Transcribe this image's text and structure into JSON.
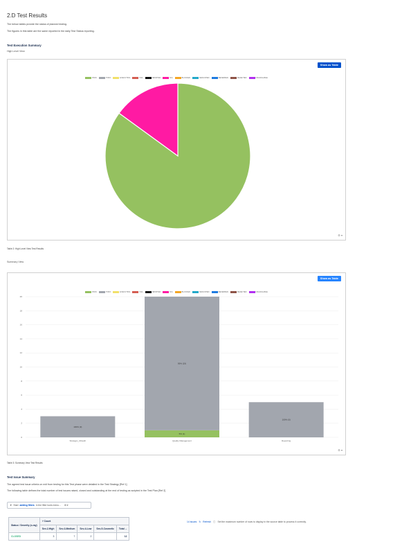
{
  "page": {
    "title": "2.D Test Results",
    "intro_1": "The below tables provide the status of planned testing.",
    "intro_2": "The figures in this table are the same reported in the daily Test Status reporting."
  },
  "exec_summary": {
    "heading": "Test Execution Summary",
    "subheading": "High Level View",
    "button": "Show as Table",
    "caption": "Table 2: High Level View Test Results",
    "gear": "⚙ ▾"
  },
  "summary_view": {
    "subheading": "Summary View",
    "button": "Show as Table",
    "caption": "Table 3: Summary View Test Results",
    "gear": "⚙ ▾"
  },
  "legend": [
    {
      "label": "PASS",
      "color": "#95c160"
    },
    {
      "label": "TODO",
      "color": "#a2a6ae"
    },
    {
      "label": "EXECUTING",
      "color": "#f1e069"
    },
    {
      "label": "FAIL",
      "color": "#d45d52"
    },
    {
      "label": "ABORTED",
      "color": "#111111"
    },
    {
      "label": "N/A",
      "color": "#ff1aa3"
    },
    {
      "label": "BLOCKED",
      "color": "#f5a623"
    },
    {
      "label": "DESCOPED",
      "color": "#23a9c9"
    },
    {
      "label": "DEFERRED",
      "color": "#1e7be0"
    },
    {
      "label": "REJECTED",
      "color": "#8e5347"
    },
    {
      "label": "UNAVAILABLE",
      "color": "#b22ff0"
    }
  ],
  "chart_data": [
    {
      "type": "pie",
      "labels": [
        "PASS",
        "N/A"
      ],
      "values": [
        85,
        15
      ],
      "colors": [
        "#95c160",
        "#ff1aa3"
      ]
    },
    {
      "type": "bar",
      "categories": [
        "Strategic_CDauth",
        "Quality Management",
        "Reporting"
      ],
      "series": [
        {
          "name": "PASS",
          "values": [
            0,
            1,
            0
          ],
          "color": "#95c160"
        },
        {
          "name": "TODO",
          "values": [
            3,
            19,
            5
          ],
          "color": "#a2a6ae"
        }
      ],
      "data_labels": [
        "100% (3)",
        "95% (19)",
        "100% (5)"
      ],
      "pass_labels": [
        "",
        "5% (1)",
        ""
      ],
      "ylim": [
        0,
        20
      ],
      "yticks": [
        0,
        2,
        4,
        6,
        8,
        10,
        12,
        14,
        16,
        18,
        20
      ]
    }
  ],
  "issues": {
    "heading": "Test Issue Summary",
    "line_1": "The agreed test issue criteria on exit from testing for this Test phase were detailed in the Test Strategy [Ref 1]",
    "line_2": "The following table defines the total number of test issues raised, closed and outstanding at the end of testing as scripted in the Test Plan [Ref 2]",
    "filter_prefix": "Start",
    "filter_bold": "adding filters",
    "filter_suffix": "in the filter tools menu...",
    "side_count": "14 issues",
    "side_refresh": "Refresh",
    "side_info": "Set the maximum number of rows to display in the source table to process it correctly.",
    "table": {
      "col0": "Status / Severity (x-ray)",
      "count_header": "Count",
      "columns": [
        "Sev-2-High",
        "Sev-3-Medium",
        "Sev-4-Low",
        "Sev-5-Cosmetic",
        "Total ..."
      ],
      "rows": [
        {
          "status": "CLOSED",
          "values": [
            "3",
            "7",
            "2",
            "",
            "12"
          ]
        }
      ]
    }
  }
}
